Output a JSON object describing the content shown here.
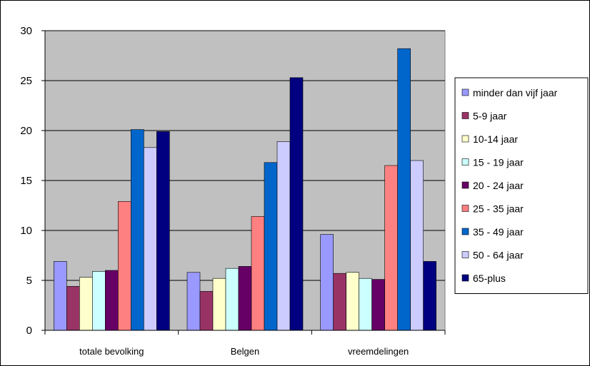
{
  "chart_data": {
    "type": "bar",
    "title": "",
    "xlabel": "",
    "ylabel": "",
    "ylim": [
      0,
      30
    ],
    "yticks": [
      0,
      5,
      10,
      15,
      20,
      25,
      30
    ],
    "grid": true,
    "legend_position": "right",
    "plot_background": "#c0c0c0",
    "categories": [
      "totale bevolking",
      "Belgen",
      "vreemdelingen"
    ],
    "series": [
      {
        "name": "minder dan vijf jaar",
        "color": "#9999ff",
        "values": [
          6.9,
          5.8,
          9.6
        ]
      },
      {
        "name": "5-9 jaar",
        "color": "#993366",
        "values": [
          4.4,
          3.9,
          5.7
        ]
      },
      {
        "name": "10-14 jaar",
        "color": "#ffffcc",
        "values": [
          5.3,
          5.2,
          5.8
        ]
      },
      {
        "name": "15 - 19 jaar",
        "color": "#ccffff",
        "values": [
          5.9,
          6.2,
          5.2
        ]
      },
      {
        "name": "20 - 24 jaar",
        "color": "#660066",
        "values": [
          6.0,
          6.4,
          5.1
        ]
      },
      {
        "name": "25 - 35 jaar",
        "color": "#ff8080",
        "values": [
          12.9,
          11.4,
          16.5
        ]
      },
      {
        "name": "35 - 49 jaar",
        "color": "#0066cc",
        "values": [
          20.1,
          16.8,
          28.2
        ]
      },
      {
        "name": "50 - 64 jaar",
        "color": "#ccccff",
        "values": [
          18.3,
          18.9,
          17.0
        ]
      },
      {
        "name": "65-plus",
        "color": "#000080",
        "values": [
          19.9,
          25.3,
          6.9
        ]
      }
    ]
  }
}
